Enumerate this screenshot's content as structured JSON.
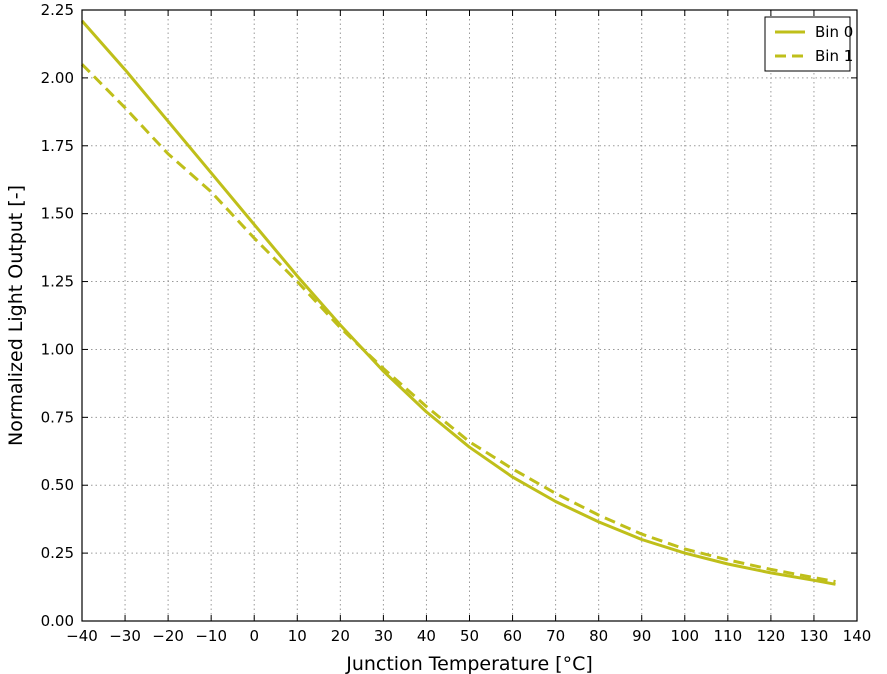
{
  "chart_data": {
    "type": "line",
    "title": "",
    "xlabel": "Junction Temperature [°C]",
    "ylabel": "Normalized Light Output [-]",
    "xlim": [
      -40,
      140
    ],
    "ylim": [
      0,
      2.25
    ],
    "xticks": [
      -40,
      -30,
      -20,
      -10,
      0,
      10,
      20,
      30,
      40,
      50,
      60,
      70,
      80,
      90,
      100,
      110,
      120,
      130,
      140
    ],
    "xtick_labels": [
      "−40",
      "−30",
      "−20",
      "−10",
      "0",
      "10",
      "20",
      "30",
      "40",
      "50",
      "60",
      "70",
      "80",
      "90",
      "100",
      "110",
      "120",
      "130",
      "140"
    ],
    "yticks": [
      0,
      0.25,
      0.5,
      0.75,
      1.0,
      1.25,
      1.5,
      1.75,
      2.0,
      2.25
    ],
    "ytick_labels": [
      "0.00",
      "0.25",
      "0.50",
      "0.75",
      "1.00",
      "1.25",
      "1.50",
      "1.75",
      "2.00",
      "2.25"
    ],
    "grid": true,
    "legend_position": "top-right",
    "line_color": "#bfbf1a",
    "series": [
      {
        "name": "Bin 0",
        "style": "solid",
        "x": [
          -40,
          -30,
          -20,
          -10,
          0,
          10,
          20,
          30,
          40,
          50,
          60,
          70,
          80,
          90,
          100,
          110,
          120,
          130,
          135
        ],
        "y": [
          2.21,
          2.03,
          1.84,
          1.65,
          1.46,
          1.27,
          1.09,
          0.92,
          0.77,
          0.64,
          0.53,
          0.44,
          0.365,
          0.3,
          0.25,
          0.21,
          0.177,
          0.15,
          0.135
        ]
      },
      {
        "name": "Bin 1",
        "style": "dashed",
        "x": [
          -40,
          -30,
          -20,
          -10,
          0,
          10,
          20,
          30,
          40,
          50,
          60,
          70,
          80,
          90,
          100,
          110,
          120,
          130,
          135
        ],
        "y": [
          2.05,
          1.89,
          1.72,
          1.58,
          1.41,
          1.25,
          1.08,
          0.93,
          0.79,
          0.66,
          0.56,
          0.47,
          0.39,
          0.32,
          0.265,
          0.225,
          0.19,
          0.16,
          0.145
        ]
      }
    ]
  }
}
